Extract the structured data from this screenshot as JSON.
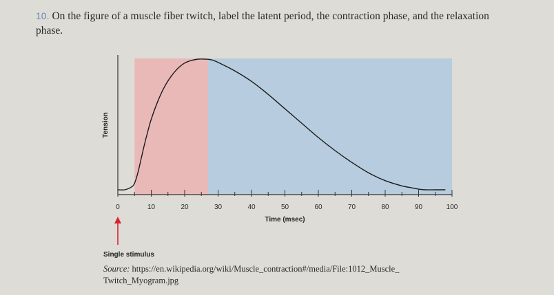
{
  "question": {
    "number": "10.",
    "text": "On the figure of a muscle fiber twitch, label the latent period, the contraction phase, and the relaxation phase."
  },
  "chart_data": {
    "type": "line",
    "title": "",
    "xlabel": "Time (msec)",
    "ylabel": "Tension",
    "xlim": [
      0,
      100
    ],
    "ylim": [
      0,
      1
    ],
    "x_ticks": [
      0,
      10,
      20,
      30,
      40,
      50,
      60,
      70,
      80,
      90,
      100
    ],
    "grid": false,
    "legend": "none",
    "shaded_regions": [
      {
        "x_start": 5,
        "x_end": 27,
        "color": "#e9b9b8"
      },
      {
        "x_start": 27,
        "x_end": 100,
        "color": "#b7ccde"
      }
    ],
    "series": [
      {
        "x": [
          0,
          2,
          4,
          5,
          6,
          7,
          8,
          9,
          10,
          12,
          14,
          16,
          18,
          20,
          22,
          24,
          26,
          28,
          30,
          35,
          40,
          45,
          50,
          55,
          60,
          65,
          70,
          75,
          80,
          85,
          88,
          90,
          92,
          95,
          98
        ],
        "y": [
          0.0,
          0.0,
          0.02,
          0.05,
          0.13,
          0.24,
          0.35,
          0.45,
          0.54,
          0.68,
          0.79,
          0.87,
          0.93,
          0.97,
          0.99,
          1.0,
          1.0,
          0.995,
          0.975,
          0.91,
          0.83,
          0.73,
          0.62,
          0.51,
          0.4,
          0.3,
          0.21,
          0.13,
          0.07,
          0.03,
          0.015,
          0.005,
          0.0,
          0.0,
          0.0
        ]
      }
    ],
    "annotations": [
      {
        "text": "Single stimulus",
        "x": 0
      }
    ]
  },
  "source": {
    "label": "Source:",
    "text": "https://en.wikipedia.org/wiki/Muscle_contraction#/media/File:1012_Muscle_ Twitch_Myogram.jpg"
  },
  "colors": {
    "curve": "#1a1a1a",
    "arrow": "#d9232e",
    "axis": "#333333"
  }
}
